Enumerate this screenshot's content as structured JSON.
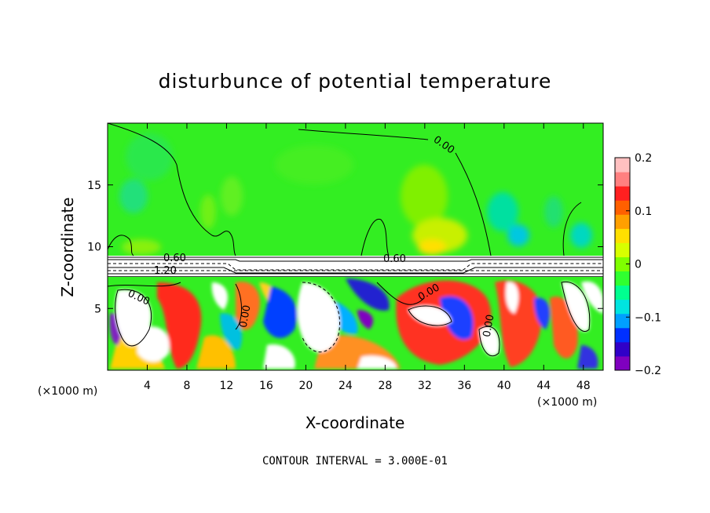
{
  "chart_data": {
    "type": "heatmap",
    "title": "disturbunce of potential temperature",
    "xlabel": "X-coordinate",
    "ylabel": "Z-coordinate",
    "x_unit": "(×1000 m)",
    "x_ticks": [
      4,
      8,
      12,
      16,
      20,
      24,
      28,
      32,
      36,
      40,
      44,
      48
    ],
    "y_ticks": [
      5,
      10,
      15
    ],
    "xlim": [
      0,
      50
    ],
    "ylim": [
      0,
      20
    ],
    "colorbar": {
      "ticks": [
        0.2,
        0.1,
        0,
        -0.1,
        -0.2
      ],
      "tick_labels": [
        "0.2",
        "0.1",
        "0",
        "−0.1",
        "−0.2"
      ],
      "range": [
        -0.2,
        0.2
      ],
      "colors": [
        "#7f00bf",
        "#3000c8",
        "#0030ff",
        "#00a0ff",
        "#00e5e0",
        "#00ff90",
        "#30ff30",
        "#7fff00",
        "#d8ff00",
        "#ffe000",
        "#ffa000",
        "#ff6000",
        "#ff2020",
        "#ff8080",
        "#ffc0c0"
      ]
    },
    "contour_labels": [
      "0.00",
      "0.60",
      "1.20",
      "0.60",
      "0.00",
      "0.00",
      "0.00",
      "0.00"
    ],
    "contour_interval_note": "CONTOUR INTERVAL = 3.000E-01"
  }
}
